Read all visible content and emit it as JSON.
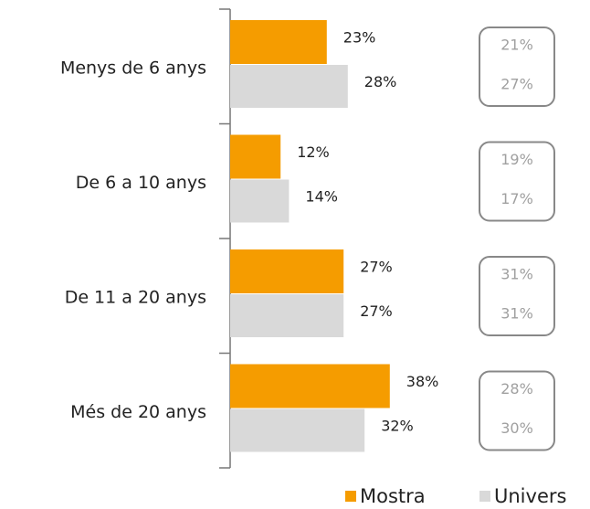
{
  "chart_data": {
    "type": "bar",
    "orientation": "horizontal",
    "categories": [
      "Menys de 6 anys",
      "De 6 a 10 anys",
      "De 11 a 20 anys",
      "Més de 20 anys"
    ],
    "series": [
      {
        "name": "Mostra",
        "color": "#f59c00",
        "values": [
          23,
          12,
          27,
          38
        ],
        "value_labels": [
          "23%",
          "12%",
          "27%",
          "38%"
        ]
      },
      {
        "name": "Univers",
        "color": "#d9d9d9",
        "values": [
          28,
          14,
          27,
          32
        ],
        "value_labels": [
          "28%",
          "14%",
          "27%",
          "32%"
        ]
      }
    ],
    "box_values": [
      [
        21,
        27
      ],
      [
        19,
        17
      ],
      [
        31,
        31
      ],
      [
        28,
        30
      ]
    ],
    "box_labels": [
      [
        "21%",
        "27%"
      ],
      [
        "19%",
        "17%"
      ],
      [
        "31%",
        "31%"
      ],
      [
        "28%",
        "30%"
      ]
    ],
    "xlim": [
      0,
      100
    ],
    "legend": "bottom-right"
  }
}
